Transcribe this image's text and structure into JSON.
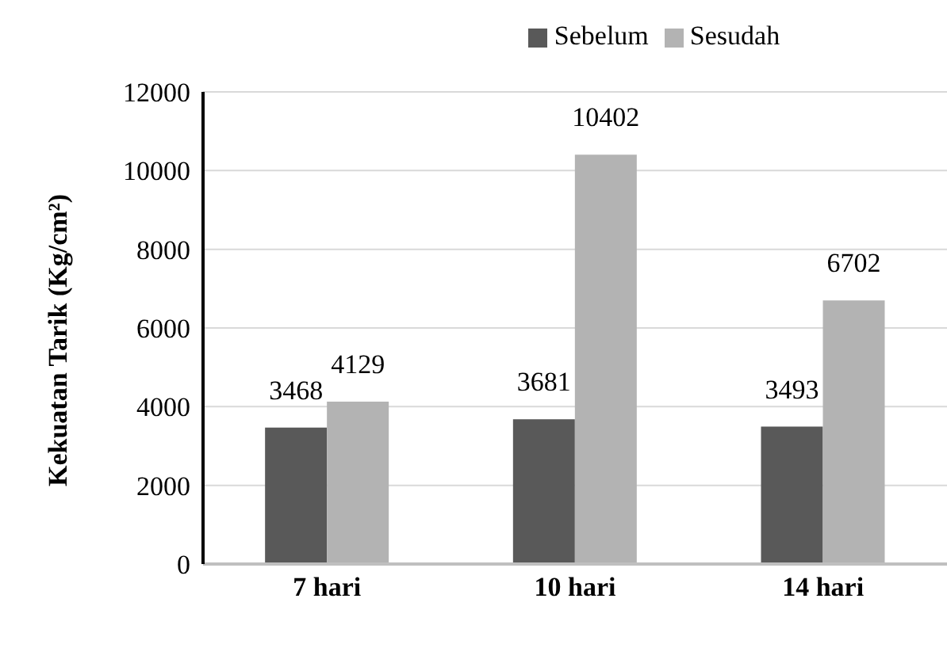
{
  "chart_data": {
    "type": "bar",
    "ylabel": "Kekuatan Tarik (Kg/cm²)",
    "categories": [
      "7 hari",
      "10 hari",
      "14 hari"
    ],
    "series": [
      {
        "name": "Sebelum",
        "color": "#595959",
        "values": [
          3468,
          3681,
          3493
        ]
      },
      {
        "name": "Sesudah",
        "color": "#b3b3b3",
        "values": [
          4129,
          10402,
          6702
        ]
      }
    ],
    "ylim": [
      0,
      12000
    ],
    "yticks": [
      0,
      2000,
      4000,
      6000,
      8000,
      10000,
      12000
    ],
    "grid": "y",
    "legend": "top",
    "data_labels": true
  }
}
